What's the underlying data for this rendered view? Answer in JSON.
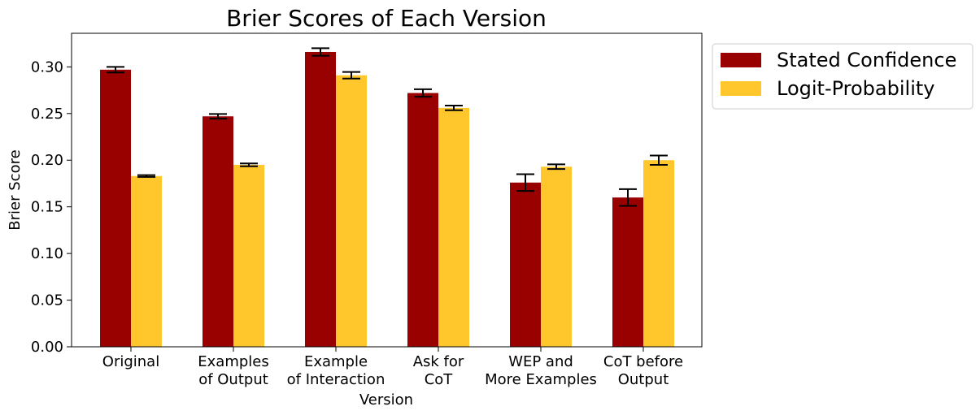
{
  "chart_data": {
    "type": "bar",
    "title": "Brier Scores of Each Version",
    "xlabel": "Version",
    "ylabel": "Brier Score",
    "ylim": [
      0,
      0.336
    ],
    "yticks": [
      "0.00",
      "0.05",
      "0.10",
      "0.15",
      "0.20",
      "0.25",
      "0.30"
    ],
    "categories": [
      [
        "Original"
      ],
      [
        "Examples",
        "of Output"
      ],
      [
        "Example",
        "of Interaction"
      ],
      [
        "Ask for",
        "CoT"
      ],
      [
        "WEP and",
        "More Examples"
      ],
      [
        "CoT before",
        "Output"
      ]
    ],
    "series": [
      {
        "name": "Stated Confidence",
        "color": "#990000",
        "values": [
          0.297,
          0.247,
          0.316,
          0.272,
          0.176,
          0.16
        ],
        "errors": [
          0.003,
          0.0025,
          0.004,
          0.004,
          0.009,
          0.009
        ]
      },
      {
        "name": "Logit-Probability",
        "color": "#ffc72c",
        "values": [
          0.183,
          0.195,
          0.291,
          0.256,
          0.193,
          0.2
        ],
        "errors": [
          0.001,
          0.0015,
          0.0035,
          0.0025,
          0.0025,
          0.005
        ]
      }
    ],
    "grid": false,
    "legend_position": "outside-top-right"
  }
}
